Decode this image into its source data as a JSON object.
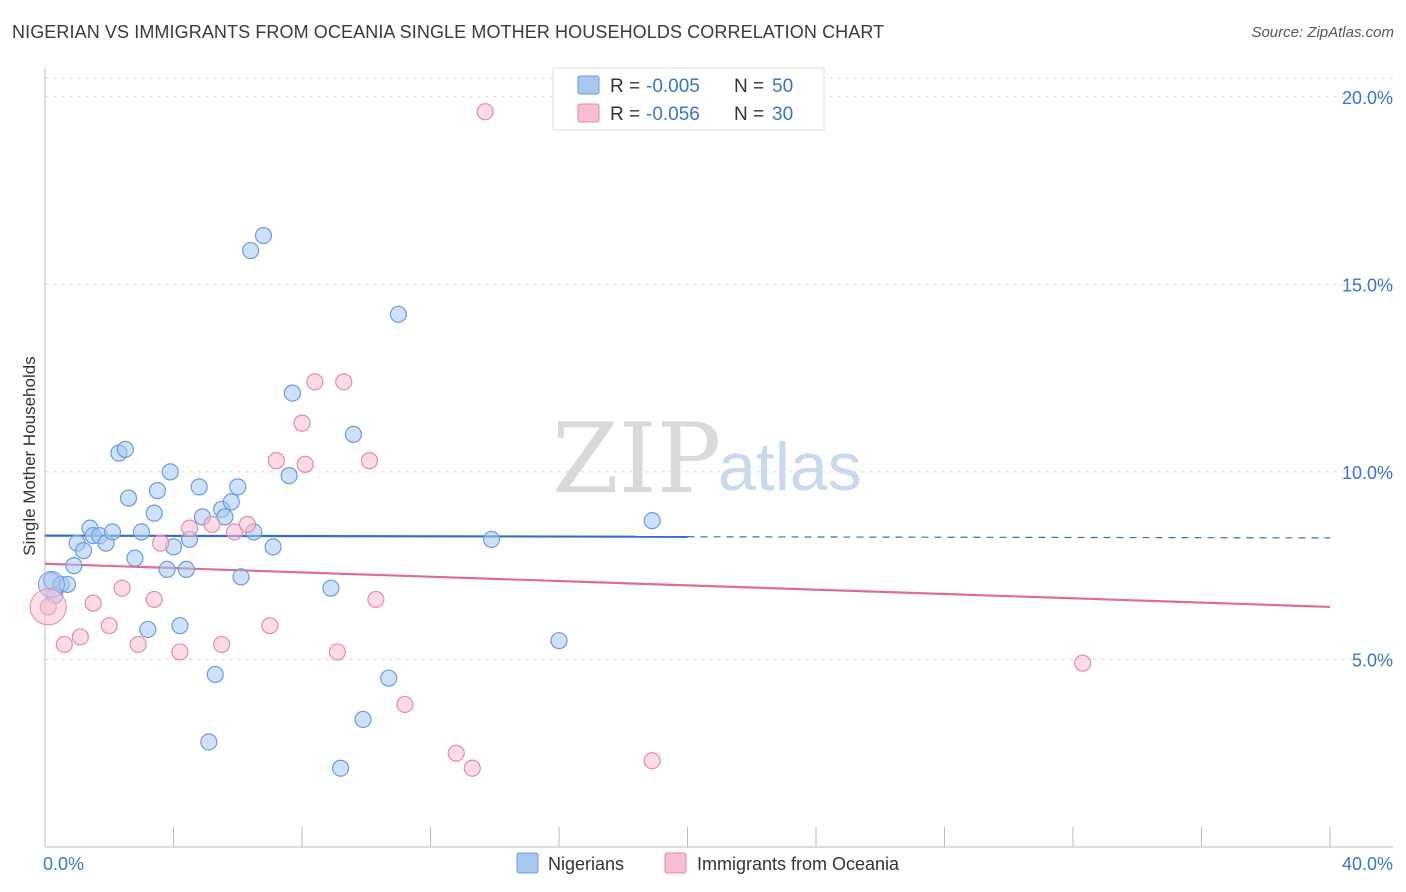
{
  "header": {
    "title": "NIGERIAN VS IMMIGRANTS FROM OCEANIA SINGLE MOTHER HOUSEHOLDS CORRELATION CHART",
    "source": "Source: ZipAtlas.com"
  },
  "watermark": {
    "zip": "ZIP",
    "atlas": "atlas"
  },
  "legend": {
    "rows": [
      {
        "r_label": "R =",
        "r_value": "-0.005",
        "n_label": "N =",
        "n_value": "50",
        "color": "#a8c8f0",
        "stroke": "#6a9be0"
      },
      {
        "r_label": "R =",
        "r_value": "-0.056",
        "n_label": "N =",
        "n_value": "30",
        "color": "#f7bfd0",
        "stroke": "#e58aa8"
      }
    ]
  },
  "bottom_legend": {
    "items": [
      {
        "label": "Nigerians",
        "color": "#a8c8f0",
        "stroke": "#6a9be0"
      },
      {
        "label": "Immigrants from Oceania",
        "color": "#f7bfd0",
        "stroke": "#e58aa8"
      }
    ]
  },
  "chart_data": {
    "type": "scatter",
    "title": "NIGERIAN VS IMMIGRANTS FROM OCEANIA SINGLE MOTHER HOUSEHOLDS CORRELATION CHART",
    "xlabel": "",
    "ylabel": "Single Mother Households",
    "xlim": [
      0,
      40
    ],
    "ylim": [
      0,
      20.5
    ],
    "x_tick_labels": [
      "0.0%",
      "40.0%"
    ],
    "y_ticks": [
      5,
      10,
      15,
      20
    ],
    "y_tick_labels": [
      "5.0%",
      "10.0%",
      "15.0%",
      "20.0%"
    ],
    "grid": true,
    "series": [
      {
        "name": "Nigerians",
        "color": "#a8c8f0",
        "stroke": "#6a9be0",
        "line_color": "#2f6fcc",
        "trend": {
          "x": [
            0,
            20,
            40
          ],
          "y": [
            8.3,
            8.27,
            8.24
          ],
          "solid_until": 20
        },
        "points": [
          [
            0.2,
            7.1
          ],
          [
            0.5,
            7.0
          ],
          [
            0.7,
            7.0
          ],
          [
            0.9,
            7.5
          ],
          [
            1.0,
            8.1
          ],
          [
            1.2,
            7.9
          ],
          [
            1.4,
            8.5
          ],
          [
            1.5,
            8.3
          ],
          [
            1.7,
            8.3
          ],
          [
            1.9,
            8.1
          ],
          [
            2.1,
            8.4
          ],
          [
            2.3,
            10.5
          ],
          [
            2.5,
            10.6
          ],
          [
            2.6,
            9.3
          ],
          [
            2.8,
            7.7
          ],
          [
            3.0,
            8.4
          ],
          [
            3.2,
            5.8
          ],
          [
            3.4,
            8.9
          ],
          [
            3.5,
            9.5
          ],
          [
            3.8,
            7.4
          ],
          [
            3.9,
            10.0
          ],
          [
            4.0,
            8.0
          ],
          [
            4.2,
            5.9
          ],
          [
            4.4,
            7.4
          ],
          [
            4.5,
            8.2
          ],
          [
            4.8,
            9.6
          ],
          [
            4.9,
            8.8
          ],
          [
            5.1,
            2.8
          ],
          [
            5.3,
            4.6
          ],
          [
            5.5,
            9.0
          ],
          [
            5.6,
            8.8
          ],
          [
            5.8,
            9.2
          ],
          [
            6.0,
            9.6
          ],
          [
            6.1,
            7.2
          ],
          [
            6.4,
            15.9
          ],
          [
            6.5,
            8.4
          ],
          [
            6.8,
            16.3
          ],
          [
            7.1,
            8.0
          ],
          [
            7.6,
            9.9
          ],
          [
            7.7,
            12.1
          ],
          [
            8.9,
            6.9
          ],
          [
            9.2,
            2.1
          ],
          [
            9.6,
            11.0
          ],
          [
            9.9,
            3.4
          ],
          [
            10.7,
            4.5
          ],
          [
            11.0,
            14.2
          ],
          [
            13.9,
            8.2
          ],
          [
            16.0,
            5.5
          ],
          [
            18.9,
            8.7
          ],
          [
            0.3,
            6.7
          ]
        ]
      },
      {
        "name": "Immigrants from Oceania",
        "color": "#f7bfd0",
        "stroke": "#e58aa8",
        "line_color": "#e06b96",
        "trend": {
          "x": [
            0,
            40
          ],
          "y": [
            7.55,
            6.4
          ],
          "solid_until": 40
        },
        "points": [
          [
            0.1,
            6.4
          ],
          [
            0.6,
            5.4
          ],
          [
            1.1,
            5.6
          ],
          [
            1.5,
            6.5
          ],
          [
            2.0,
            5.9
          ],
          [
            2.4,
            6.9
          ],
          [
            2.9,
            5.4
          ],
          [
            3.4,
            6.6
          ],
          [
            3.6,
            8.1
          ],
          [
            4.2,
            5.2
          ],
          [
            4.5,
            8.5
          ],
          [
            5.2,
            8.6
          ],
          [
            5.5,
            5.4
          ],
          [
            5.9,
            8.4
          ],
          [
            6.3,
            8.6
          ],
          [
            7.0,
            5.9
          ],
          [
            7.2,
            10.3
          ],
          [
            8.0,
            11.3
          ],
          [
            8.1,
            10.2
          ],
          [
            8.4,
            12.4
          ],
          [
            9.1,
            5.2
          ],
          [
            9.3,
            12.4
          ],
          [
            10.1,
            10.3
          ],
          [
            10.3,
            6.6
          ],
          [
            11.2,
            3.8
          ],
          [
            12.8,
            2.5
          ],
          [
            13.3,
            2.1
          ],
          [
            13.7,
            19.6
          ],
          [
            18.9,
            2.3
          ],
          [
            32.3,
            4.9
          ]
        ]
      }
    ]
  }
}
